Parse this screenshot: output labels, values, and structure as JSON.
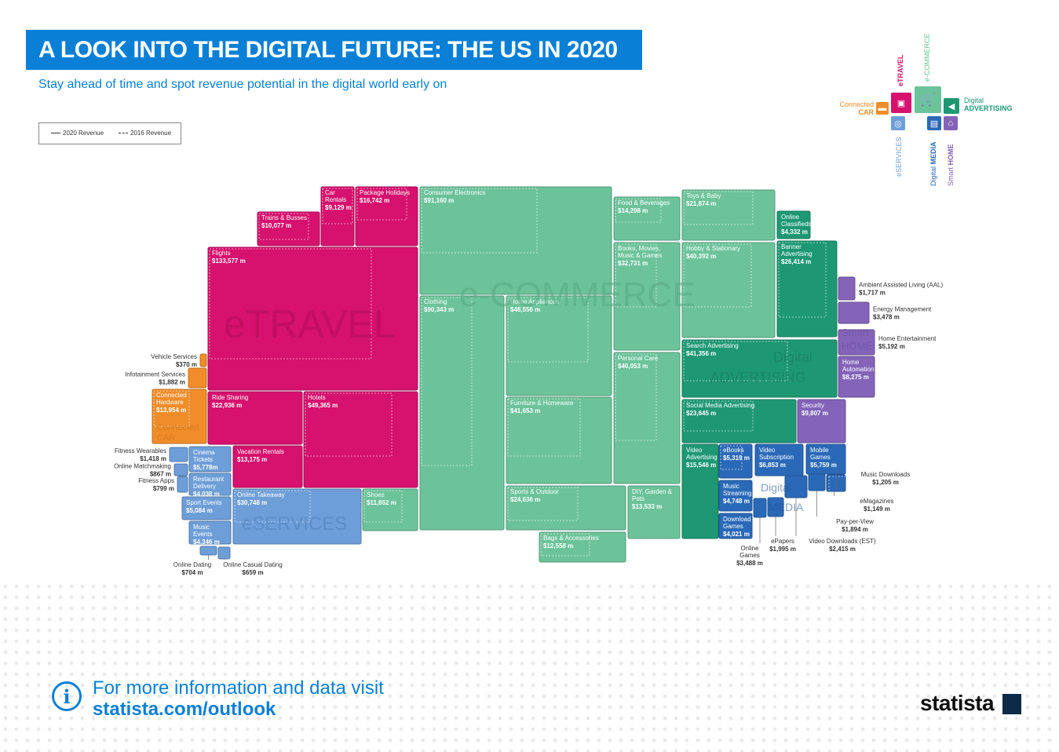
{
  "page": {
    "title": "A LOOK INTO THE DIGITAL FUTURE: THE US IN 2020",
    "subtitle": "Stay ahead of time and spot revenue potential in the digital world early on",
    "legend": {
      "solid": "2020 Revenue",
      "dashed": "2016 Revenue"
    },
    "footer": {
      "line1": "For more information and data visit",
      "link": "statista.com/outlook",
      "brand": "statista"
    }
  },
  "map": {
    "items": [
      {
        "id": "car",
        "line1": "Connected",
        "line2": "CAR",
        "color": "#f08d2a",
        "icon": "car-icon"
      },
      {
        "id": "travel",
        "line1": "",
        "line2": "eTRAVEL",
        "color": "#d6116e",
        "icon": "suitcase-icon"
      },
      {
        "id": "commerce",
        "line1": "e-COMMERCE",
        "line2": "",
        "color": "#6cc39b",
        "icon": "cart-icon"
      },
      {
        "id": "advertising",
        "line1": "Digital",
        "line2": "ADVERTISING",
        "color": "#1e9873",
        "icon": "megaphone-icon"
      },
      {
        "id": "services",
        "line1": "eSERVICES",
        "line2": "",
        "color": "#6d9ed8",
        "icon": "globe-icon"
      },
      {
        "id": "media",
        "line1": "Digital",
        "line2": "MEDIA",
        "color": "#2a69b8",
        "icon": "newspaper-icon"
      },
      {
        "id": "home",
        "line1": "Smart",
        "line2": "HOME",
        "color": "#8364b8",
        "icon": "house-icon"
      }
    ]
  },
  "chart_data": {
    "type": "treemap",
    "unit": "US$ m",
    "segments": [
      {
        "name": "eTRAVEL",
        "color": "#d6116e"
      },
      {
        "name": "e-COMMERCE",
        "color": "#6cc39b"
      },
      {
        "name": "Digital ADVERTISING",
        "color": "#1e9873"
      },
      {
        "name": "Smart HOME",
        "color": "#8364b8"
      },
      {
        "name": "Connected CAR",
        "color": "#f08d2a"
      },
      {
        "name": "eSERVICES",
        "color": "#6d9ed8"
      },
      {
        "name": "Digital MEDIA",
        "color": "#2a69b8"
      }
    ],
    "series": [
      {
        "segment": "eTRAVEL",
        "name": "Flights",
        "value": "$133,577 m"
      },
      {
        "segment": "eTRAVEL",
        "name": "Package Holidays",
        "value": "$16,742 m"
      },
      {
        "segment": "eTRAVEL",
        "name": "Car Rentals",
        "value": "$9,129 m"
      },
      {
        "segment": "eTRAVEL",
        "name": "Trains & Busses",
        "value": "$10,077 m"
      },
      {
        "segment": "eTRAVEL",
        "name": "Hotels",
        "value": "$49,365 m"
      },
      {
        "segment": "eTRAVEL",
        "name": "Ride Sharing",
        "value": "$22,936 m"
      },
      {
        "segment": "eTRAVEL",
        "name": "Vacation Rentals",
        "value": "$13,175 m"
      },
      {
        "segment": "e-COMMERCE",
        "name": "Consumer Electronics",
        "value": "$91,160 m"
      },
      {
        "segment": "e-COMMERCE",
        "name": "Clothing",
        "value": "$90,343 m"
      },
      {
        "segment": "e-COMMERCE",
        "name": "Home Appliances",
        "value": "$48,556 m"
      },
      {
        "segment": "e-COMMERCE",
        "name": "Furniture & Homeware",
        "value": "$41,653 m"
      },
      {
        "segment": "e-COMMERCE",
        "name": "Sports & Outdoor",
        "value": "$24,636 m"
      },
      {
        "segment": "e-COMMERCE",
        "name": "DIY, Garden & Pets",
        "value": "$13,533 m"
      },
      {
        "segment": "e-COMMERCE",
        "name": "Bags & Accessories",
        "value": "$12,558 m"
      },
      {
        "segment": "e-COMMERCE",
        "name": "Shoes",
        "value": "$11,852 m"
      },
      {
        "segment": "e-COMMERCE",
        "name": "Food & Beverages",
        "value": "$14,298 m"
      },
      {
        "segment": "e-COMMERCE",
        "name": "Books, Movies, Music & Games",
        "value": "$32,731 m"
      },
      {
        "segment": "e-COMMERCE",
        "name": "Personal Care",
        "value": "$40,053 m"
      },
      {
        "segment": "e-COMMERCE",
        "name": "Toys & Baby",
        "value": "$21,874 m"
      },
      {
        "segment": "e-COMMERCE",
        "name": "Hobby & Stationary",
        "value": "$40,392 m"
      },
      {
        "segment": "Digital ADVERTISING",
        "name": "Online Classifieds",
        "value": "$4,332 m"
      },
      {
        "segment": "Digital ADVERTISING",
        "name": "Banner Advertising",
        "value": "$26,414 m"
      },
      {
        "segment": "Digital ADVERTISING",
        "name": "Search Advertising",
        "value": "$41,356 m"
      },
      {
        "segment": "Digital ADVERTISING",
        "name": "Social Media Advertising",
        "value": "$23,645 m"
      },
      {
        "segment": "Digital ADVERTISING",
        "name": "Video Advertising",
        "value": "$15,546 m"
      },
      {
        "segment": "Smart HOME",
        "name": "Ambient Assisted Living (AAL)",
        "value": "$1,717 m"
      },
      {
        "segment": "Smart HOME",
        "name": "Energy Management",
        "value": "$3,478 m"
      },
      {
        "segment": "Smart HOME",
        "name": "Home Entertainment",
        "value": "$5,192 m"
      },
      {
        "segment": "Smart HOME",
        "name": "Home Automation",
        "value": "$8,275 m"
      },
      {
        "segment": "Smart HOME",
        "name": "Security",
        "value": "$9,807 m"
      },
      {
        "segment": "Connected CAR",
        "name": "Vehicle Services",
        "value": "$370 m"
      },
      {
        "segment": "Connected CAR",
        "name": "Infotainment Services",
        "value": "$1,882 m"
      },
      {
        "segment": "Connected CAR",
        "name": "Connected Hardware",
        "value": "$13,954 m"
      },
      {
        "segment": "eSERVICES",
        "name": "Fitness Wearables",
        "value": "$1,418 m"
      },
      {
        "segment": "eSERVICES",
        "name": "Online Matchmaking",
        "value": "$867 m"
      },
      {
        "segment": "eSERVICES",
        "name": "Fitness Apps",
        "value": "$799 m"
      },
      {
        "segment": "eSERVICES",
        "name": "Cinema Tickets",
        "value": "$5,778m"
      },
      {
        "segment": "eSERVICES",
        "name": "Restaurant Delivery",
        "value": "$4,038 m"
      },
      {
        "segment": "eSERVICES",
        "name": "Sport Events",
        "value": "$5,084 m"
      },
      {
        "segment": "eSERVICES",
        "name": "Music Events",
        "value": "$4,346 m"
      },
      {
        "segment": "eSERVICES",
        "name": "Online Takeaway",
        "value": "$30,748 m"
      },
      {
        "segment": "eSERVICES",
        "name": "Online Dating",
        "value": "$704 m"
      },
      {
        "segment": "eSERVICES",
        "name": "Online Casual Dating",
        "value": "$659 m"
      },
      {
        "segment": "Digital MEDIA",
        "name": "eBooks",
        "value": "$5,319 m"
      },
      {
        "segment": "Digital MEDIA",
        "name": "Video Subscription",
        "value": "$6,853 m"
      },
      {
        "segment": "Digital MEDIA",
        "name": "Mobile Games",
        "value": "$5,759 m"
      },
      {
        "segment": "Digital MEDIA",
        "name": "Music Streaming",
        "value": "$4,748 m"
      },
      {
        "segment": "Digital MEDIA",
        "name": "Download Games",
        "value": "$4,021 m"
      },
      {
        "segment": "Digital MEDIA",
        "name": "Online Games",
        "value": "$3,488 m"
      },
      {
        "segment": "Digital MEDIA",
        "name": "ePapers",
        "value": "$1,995 m"
      },
      {
        "segment": "Digital MEDIA",
        "name": "Video Downloads (EST)",
        "value": "$2,415 m"
      },
      {
        "segment": "Digital MEDIA",
        "name": "Pay-per-View",
        "value": "$1,894 m"
      },
      {
        "segment": "Digital MEDIA",
        "name": "eMagazines",
        "value": "$1,149 m"
      },
      {
        "segment": "Digital MEDIA",
        "name": "Music Downloads",
        "value": "$1,205 m"
      }
    ]
  }
}
